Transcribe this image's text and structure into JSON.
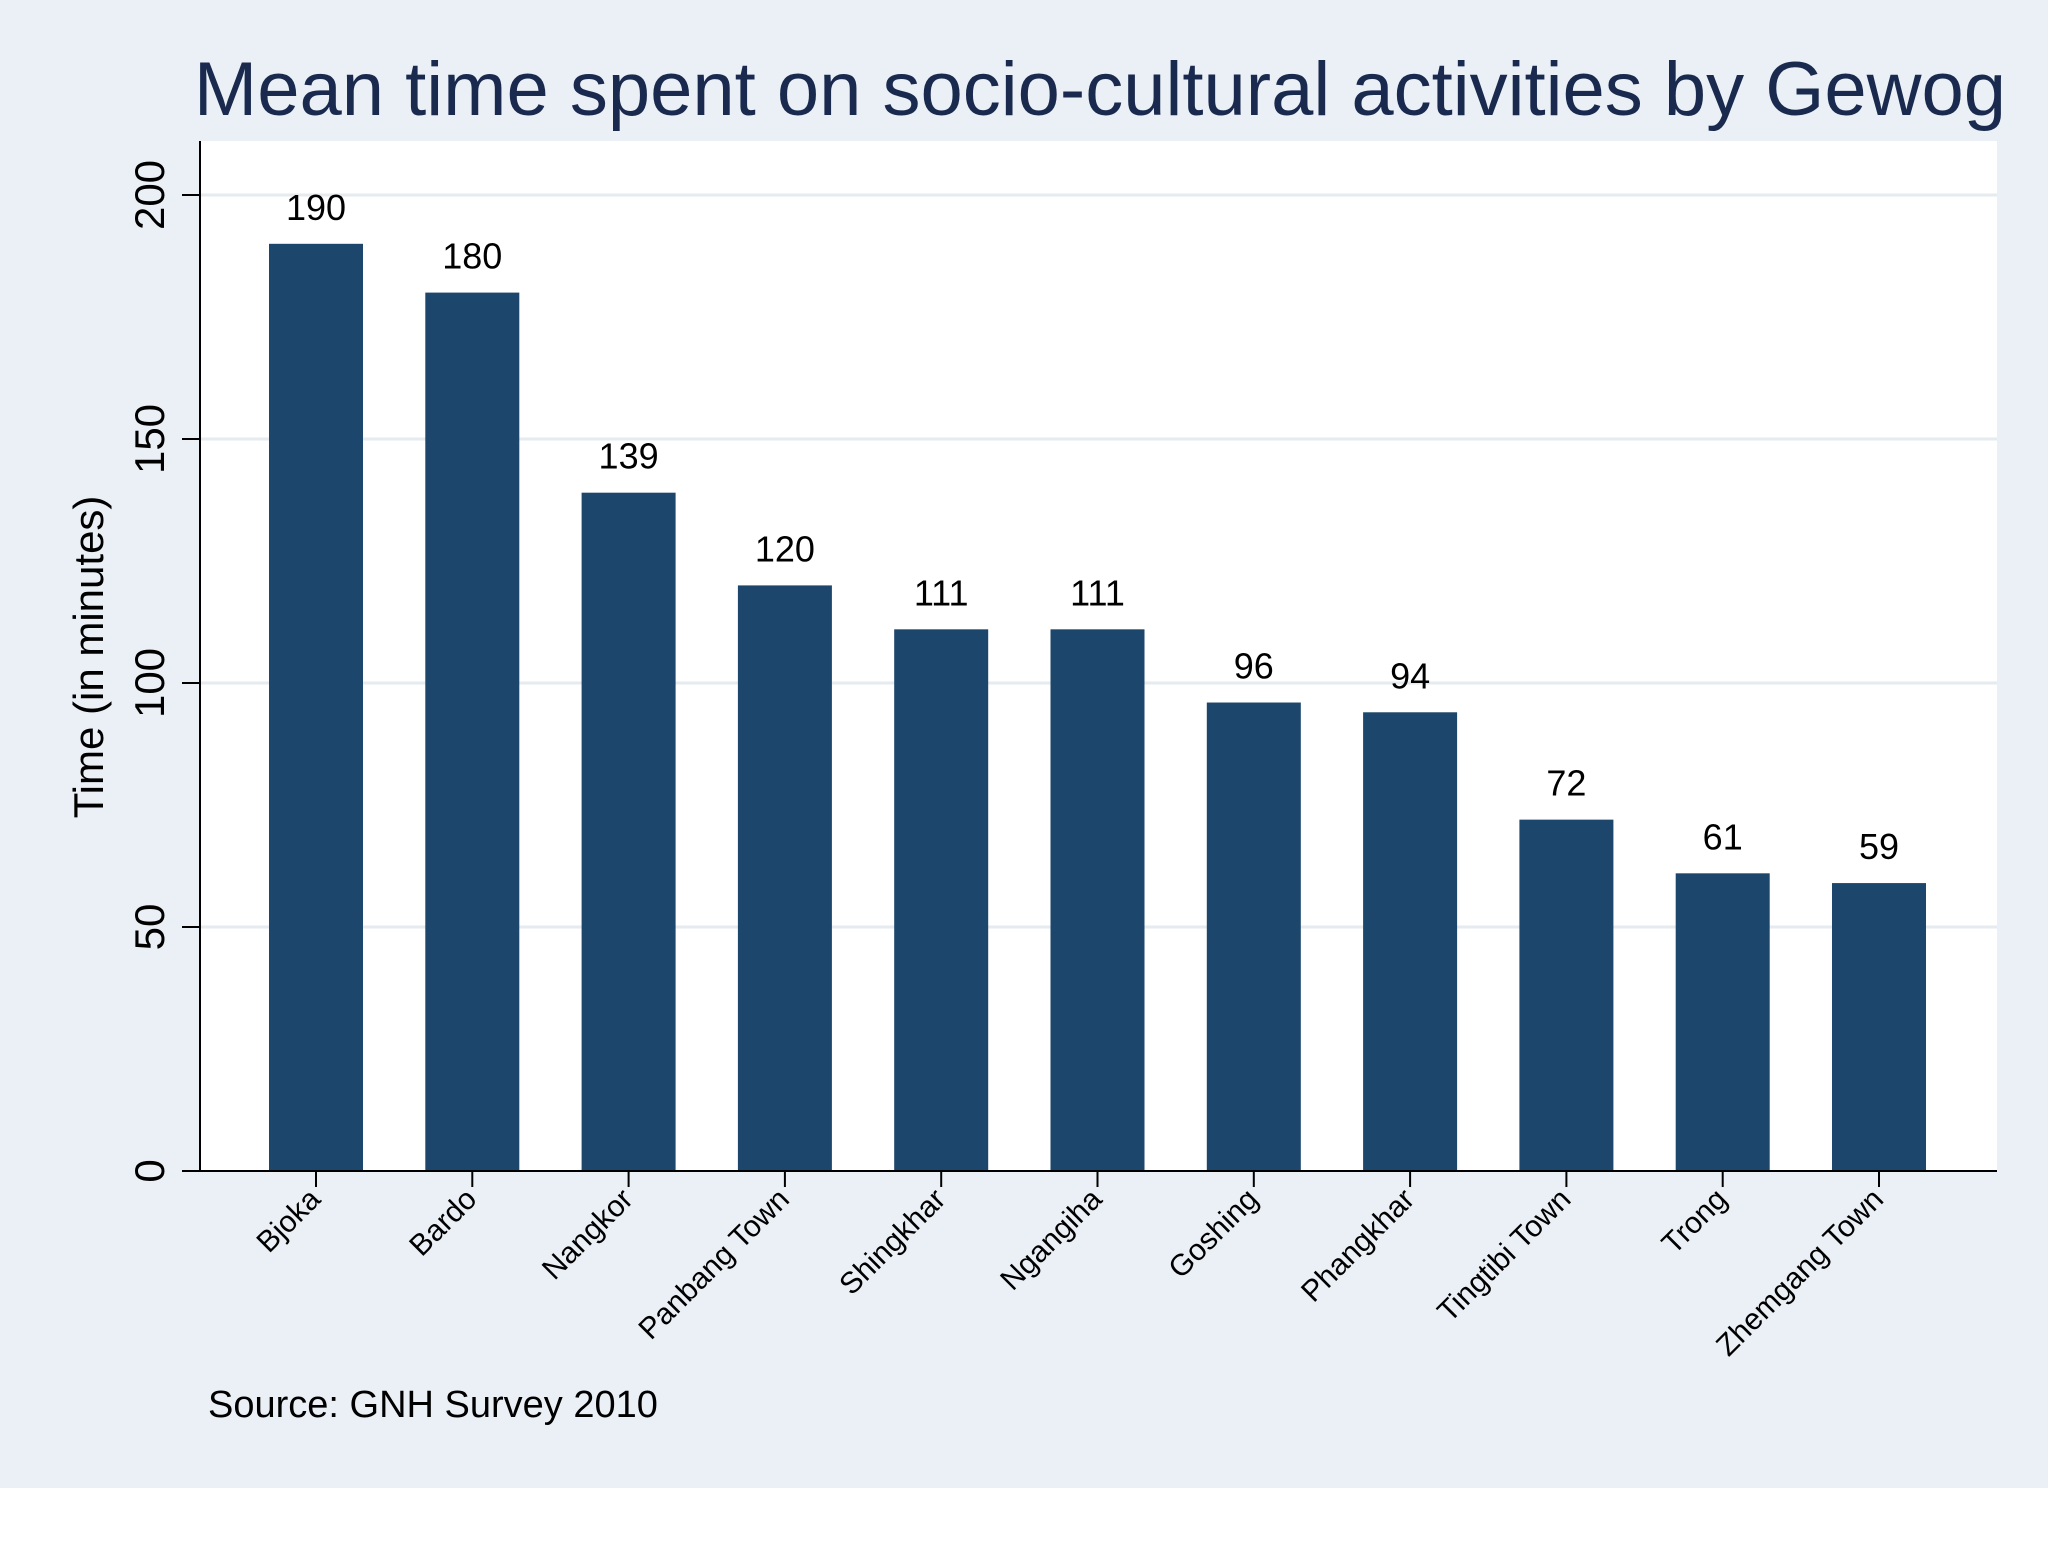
{
  "chart_data": {
    "type": "bar",
    "title": "Mean time spent on socio-cultural activities by Gewog",
    "xlabel": "",
    "ylabel": "Time (in minutes)",
    "ylim": [
      0,
      210
    ],
    "yticks": [
      0,
      50,
      100,
      150,
      200
    ],
    "grid": true,
    "legend": "none",
    "categories": [
      "Bjoka",
      "Bardo",
      "Nangkor",
      "Panbang Town",
      "Shingkhar",
      "Ngangiha",
      "Goshing",
      "Phangkhar",
      "Tingtibi Town",
      "Trong",
      "Zhemgang Town"
    ],
    "values": [
      190,
      180,
      139,
      120,
      111,
      111,
      96,
      94,
      72,
      61,
      59
    ],
    "value_labels": [
      "190",
      "180",
      "139",
      "120",
      "111",
      "111",
      "96",
      "94",
      "72",
      "61",
      "59"
    ],
    "note": "Source: GNH Survey 2010"
  },
  "colors": {
    "page_background": "#ffffff",
    "outer_background": "#eaf0f6",
    "plot_background": "#ffffff",
    "bar": "#1c466b",
    "grid": "#e6ebf0",
    "title": "#1a2a4f",
    "text": "#000000"
  }
}
